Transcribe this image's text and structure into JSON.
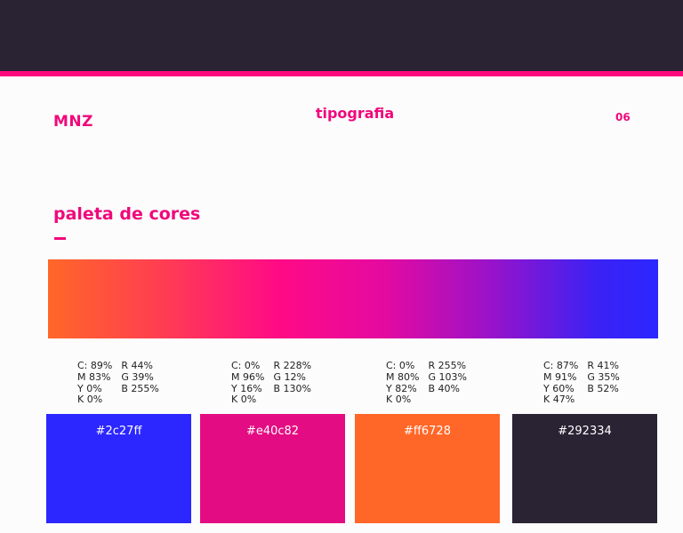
{
  "header": {
    "brand": "MNZ",
    "section": "tipografia",
    "page_number": "06"
  },
  "palette": {
    "title": "paleta de cores",
    "colors": [
      {
        "hex": "#2c27ff",
        "cmyk": [
          "C: 89%",
          "M 83%",
          "Y 0%",
          "K 0%"
        ],
        "rgb": [
          "R 44%",
          "G 39%",
          "B 255%"
        ]
      },
      {
        "hex": "#e40c82",
        "cmyk": [
          "C: 0%",
          "M 96%",
          "Y 16%",
          "K 0%"
        ],
        "rgb": [
          "R 228%",
          "G 12%",
          "B 130%"
        ]
      },
      {
        "hex": "#ff6728",
        "cmyk": [
          "C: 0%",
          "M 80%",
          "Y 82%",
          "K 0%"
        ],
        "rgb": [
          "R 255%",
          "G 103%",
          "B 40%"
        ]
      },
      {
        "hex": "#292334",
        "cmyk": [
          "C: 87%",
          "M 91%",
          "Y 60%",
          "K 47%"
        ],
        "rgb": [
          "R 41%",
          "G 35%",
          "B 52%"
        ]
      }
    ]
  },
  "accent_color": "#f0087c"
}
